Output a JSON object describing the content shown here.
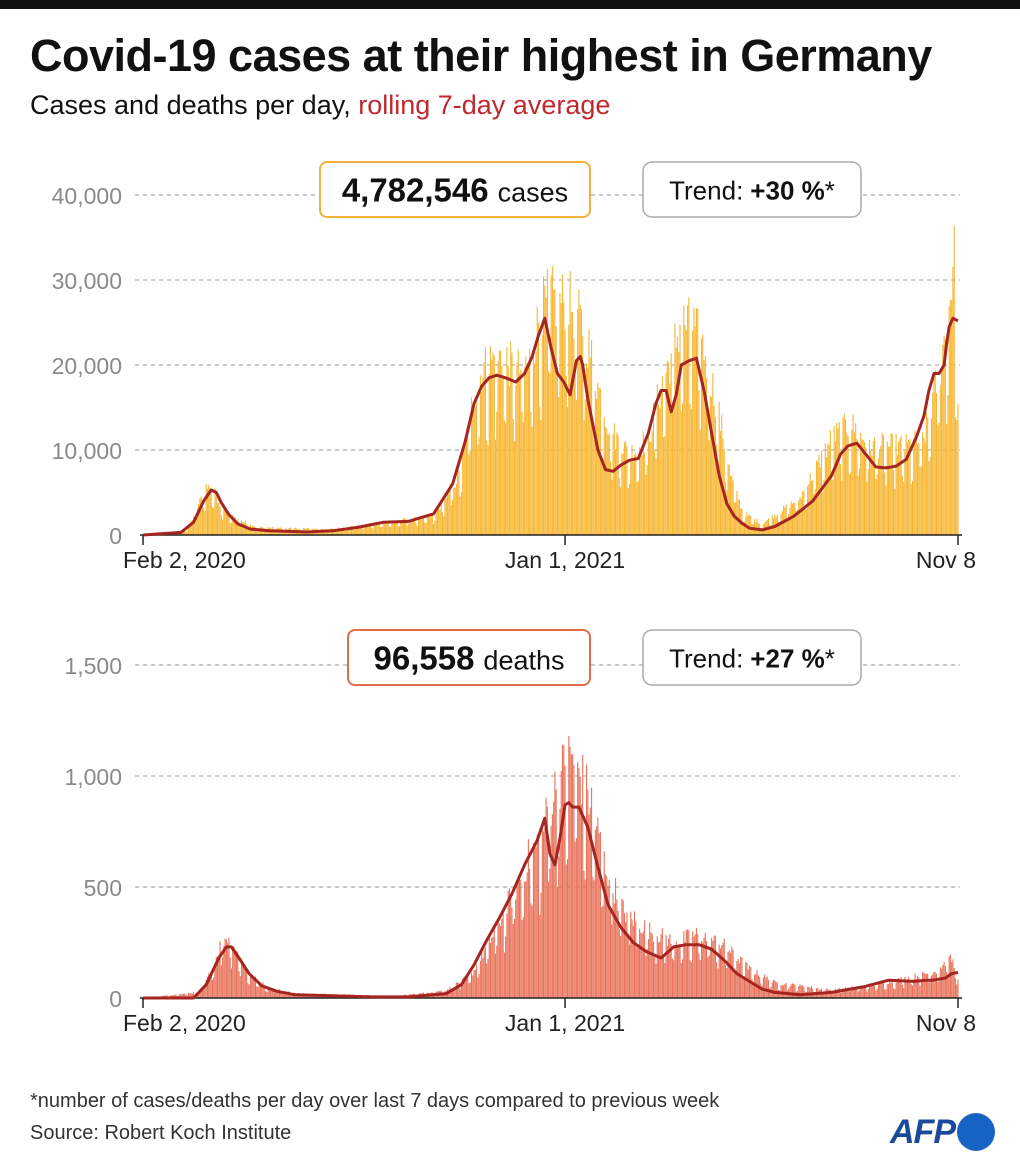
{
  "header": {
    "title": "Covid-19 cases at their highest in Germany",
    "subtitle_main": "Cases and deaths per day, ",
    "subtitle_accent": "rolling 7-day average"
  },
  "colors": {
    "cases_bar": "#f7b733",
    "deaths_bar": "#e8735c",
    "average_line": "#a52521",
    "cases_box_border": "#f3b03c",
    "deaths_box_border": "#df6e4c",
    "trend_box_border": "#aaaaaa",
    "axis_text": "#8a8a8a",
    "accent": "#c0282d"
  },
  "footer": {
    "footnote": "*number of cases/deaths per day over last 7 days compared to previous week",
    "source": "Source: Robert Koch Institute",
    "logo_text": "AFP"
  },
  "chart_data": [
    {
      "type": "bar",
      "name": "cases",
      "total_value": "4,782,546",
      "total_label": "cases",
      "trend_label": "Trend:",
      "trend_value": "+30 %",
      "trend_suffix": "*",
      "ylim": [
        0,
        40000
      ],
      "y_ticks": [
        0,
        10000,
        20000,
        30000,
        40000
      ],
      "y_tick_labels": [
        "0",
        "10,000",
        "20,000",
        "30,000",
        "40,000"
      ],
      "x_tick_labels": [
        {
          "label": "Feb 2, 2020",
          "day": 0
        },
        {
          "label": "Jan 1, 2021",
          "day": 334
        },
        {
          "label": "Nov 8",
          "day": 645
        }
      ],
      "x_range_days": [
        0,
        645
      ],
      "average_series": {
        "name": "rolling 7-day average",
        "days": [
          0,
          30,
          40,
          48,
          54,
          58,
          62,
          68,
          75,
          85,
          100,
          130,
          150,
          170,
          190,
          210,
          230,
          245,
          255,
          262,
          268,
          274,
          280,
          287,
          295,
          302,
          308,
          313,
          318,
          323,
          328,
          333,
          338,
          343,
          346,
          348,
          352,
          356,
          360,
          366,
          372,
          378,
          385,
          392,
          400,
          406,
          410,
          414,
          418,
          422,
          426,
          432,
          438,
          444,
          450,
          456,
          462,
          468,
          474,
          480,
          490,
          500,
          515,
          530,
          545,
          552,
          558,
          565,
          572,
          580,
          588,
          596,
          604,
          612,
          618,
          622,
          626,
          630,
          634,
          636,
          638,
          641,
          645
        ],
        "values": [
          0,
          300,
          1500,
          4000,
          5300,
          5000,
          3800,
          2400,
          1300,
          700,
          500,
          350,
          500,
          900,
          1500,
          1600,
          2500,
          6000,
          11000,
          15500,
          17500,
          18500,
          18800,
          18500,
          18000,
          19000,
          21000,
          23500,
          25500,
          22000,
          19000,
          18000,
          16500,
          20500,
          21000,
          20000,
          16000,
          13000,
          10000,
          7700,
          7500,
          8200,
          8800,
          9000,
          12000,
          15500,
          17000,
          17000,
          14500,
          16500,
          20000,
          20500,
          20800,
          17000,
          12000,
          7000,
          3700,
          2200,
          1400,
          800,
          600,
          1000,
          2200,
          4000,
          7000,
          9500,
          10500,
          10800,
          9500,
          8000,
          7900,
          8100,
          8900,
          11500,
          14000,
          17000,
          19000,
          19000,
          20000,
          22500,
          24500,
          25500,
          25200
        ]
      },
      "daily_envelope": {
        "days": [
          0,
          35,
          45,
          50,
          55,
          62,
          70,
          90,
          150,
          230,
          250,
          262,
          268,
          275,
          285,
          295,
          305,
          315,
          322,
          330,
          335,
          345,
          352,
          360,
          370,
          385,
          400,
          410,
          418,
          426,
          436,
          444,
          455,
          465,
          475,
          490,
          520,
          545,
          560,
          575,
          590,
          605,
          618,
          630,
          636,
          640,
          642,
          645
        ],
        "values": [
          0,
          600,
          4500,
          6500,
          6200,
          4000,
          2500,
          1000,
          800,
          2500,
          8000,
          19000,
          22000,
          23500,
          24000,
          22000,
          23000,
          30000,
          32000,
          31000,
          32000,
          29000,
          26000,
          20000,
          14000,
          11000,
          13000,
          20000,
          24000,
          28500,
          28000,
          25000,
          17000,
          8000,
          3000,
          1500,
          5000,
          13000,
          15000,
          12000,
          12000,
          12000,
          13000,
          22000,
          28000,
          34500,
          37000,
          16000
        ]
      }
    },
    {
      "type": "bar",
      "name": "deaths",
      "total_value": "96,558",
      "total_label": "deaths",
      "trend_label": "Trend:",
      "trend_value": "+27 %",
      "trend_suffix": "*",
      "ylim": [
        0,
        1500
      ],
      "y_ticks": [
        0,
        500,
        1000,
        1500
      ],
      "y_tick_labels": [
        "0",
        "500",
        "1,000",
        "1,500"
      ],
      "x_tick_labels": [
        {
          "label": "Feb 2, 2020",
          "day": 0
        },
        {
          "label": "Jan 1, 2021",
          "day": 334
        },
        {
          "label": "Nov 8",
          "day": 645
        }
      ],
      "x_range_days": [
        0,
        645
      ],
      "average_series": {
        "name": "rolling 7-day average",
        "days": [
          0,
          40,
          50,
          60,
          66,
          70,
          76,
          84,
          94,
          106,
          120,
          150,
          180,
          210,
          240,
          252,
          262,
          272,
          282,
          292,
          302,
          312,
          318,
          322,
          326,
          330,
          334,
          337,
          340,
          345,
          352,
          360,
          368,
          378,
          388,
          398,
          410,
          420,
          430,
          440,
          450,
          460,
          470,
          480,
          490,
          500,
          520,
          545,
          570,
          590,
          610,
          620,
          625,
          635,
          640,
          645
        ],
        "values": [
          0,
          0,
          60,
          180,
          230,
          230,
          180,
          110,
          55,
          30,
          15,
          10,
          5,
          5,
          20,
          60,
          150,
          260,
          360,
          470,
          600,
          710,
          810,
          650,
          600,
          720,
          870,
          880,
          860,
          860,
          770,
          590,
          420,
          320,
          250,
          210,
          180,
          230,
          240,
          240,
          220,
          170,
          110,
          75,
          40,
          25,
          15,
          25,
          50,
          80,
          75,
          80,
          80,
          90,
          110,
          115
        ]
      },
      "daily_envelope": {
        "days": [
          0,
          45,
          55,
          62,
          68,
          74,
          84,
          100,
          120,
          200,
          240,
          260,
          275,
          290,
          305,
          315,
          322,
          328,
          334,
          340,
          346,
          355,
          365,
          380,
          400,
          420,
          440,
          460,
          480,
          500,
          545,
          580,
          610,
          628,
          636,
          640,
          645
        ],
        "values": [
          0,
          30,
          150,
          290,
          320,
          240,
          120,
          50,
          25,
          10,
          40,
          120,
          300,
          500,
          720,
          820,
          1000,
          1100,
          1200,
          1250,
          1150,
          1000,
          700,
          450,
          350,
          290,
          330,
          270,
          150,
          80,
          40,
          70,
          110,
          140,
          190,
          200,
          110
        ]
      }
    }
  ]
}
